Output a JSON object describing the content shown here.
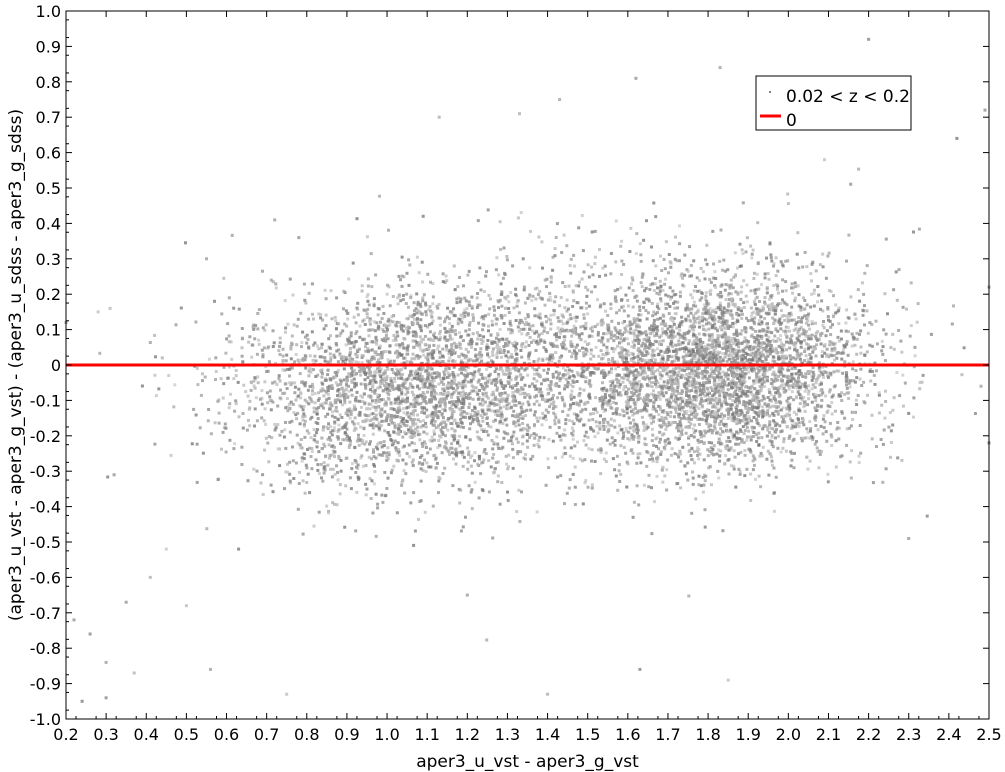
{
  "chart_data": {
    "type": "scatter",
    "title": "",
    "xlabel": "aper3_u_vst - aper3_g_vst",
    "ylabel": "(aper3_u_vst - aper3_g_vst) - (aper3_u_sdss - aper3_g_sdss)",
    "xlim": [
      0.2,
      2.5
    ],
    "ylim": [
      -1.0,
      1.0
    ],
    "x_ticks": [
      "0.2",
      "0.3",
      "0.4",
      "0.5",
      "0.6",
      "0.7",
      "0.8",
      "0.9",
      "1.0",
      "1.1",
      "1.2",
      "1.3",
      "1.4",
      "1.5",
      "1.6",
      "1.7",
      "1.8",
      "1.9",
      "2.0",
      "2.1",
      "2.2",
      "2.3",
      "2.4",
      "2.5"
    ],
    "y_ticks": [
      "1.0",
      "0.9",
      "0.8",
      "0.7",
      "0.6",
      "0.5",
      "0.4",
      "0.3",
      "0.2",
      "0.1",
      "0",
      "-0.1",
      "-0.2",
      "-0.3",
      "-0.4",
      "-0.5",
      "-0.6",
      "-0.7",
      "-0.8",
      "-0.9",
      "-1.0"
    ],
    "grid": false,
    "legend_position": "top-right",
    "series": [
      {
        "name": "0.02 < z < 0.2",
        "kind": "scatter",
        "color": "#808080",
        "clusters": [
          {
            "x_center": 1.05,
            "y_center": -0.05,
            "x_spread": 0.22,
            "y_spread": 0.13,
            "count": 2600
          },
          {
            "x_center": 1.85,
            "y_center": -0.05,
            "x_spread": 0.17,
            "y_spread": 0.13,
            "count": 3200
          },
          {
            "x_center": 1.45,
            "y_center": 0.0,
            "x_spread": 0.35,
            "y_spread": 0.16,
            "count": 1800
          }
        ],
        "scattered_points": [
          [
            0.22,
            -0.72
          ],
          [
            0.24,
            -0.95
          ],
          [
            0.26,
            -0.76
          ],
          [
            0.3,
            -0.84
          ],
          [
            0.3,
            -0.94
          ],
          [
            0.35,
            -0.67
          ],
          [
            0.37,
            -0.87
          ],
          [
            0.41,
            -0.6
          ],
          [
            0.45,
            -0.52
          ],
          [
            0.5,
            -0.68
          ],
          [
            0.28,
            0.15
          ],
          [
            0.31,
            0.16
          ],
          [
            0.2,
            0.12
          ],
          [
            0.44,
            0.02
          ],
          [
            0.55,
            0.3
          ],
          [
            0.57,
            0.18
          ],
          [
            0.72,
            0.41
          ],
          [
            0.78,
            0.36
          ],
          [
            1.13,
            0.7
          ],
          [
            1.09,
            0.42
          ],
          [
            1.33,
            0.71
          ],
          [
            1.43,
            0.75
          ],
          [
            1.62,
            0.81
          ],
          [
            1.83,
            0.84
          ],
          [
            2.2,
            0.92
          ],
          [
            2.49,
            0.72
          ],
          [
            2.42,
            0.64
          ],
          [
            2.5,
            0.22
          ],
          [
            2.48,
            -0.06
          ],
          [
            2.5,
            -0.22
          ],
          [
            2.3,
            -0.49
          ],
          [
            1.63,
            -0.86
          ],
          [
            1.85,
            -0.89
          ],
          [
            1.4,
            -0.93
          ],
          [
            0.75,
            -0.93
          ],
          [
            0.86,
            0.02
          ],
          [
            0.63,
            -0.52
          ],
          [
            0.56,
            -0.86
          ],
          [
            1.2,
            -0.65
          ],
          [
            2.09,
            0.58
          ]
        ]
      },
      {
        "name": "0",
        "kind": "line",
        "color": "#ff0000",
        "y_value": 0
      }
    ]
  }
}
